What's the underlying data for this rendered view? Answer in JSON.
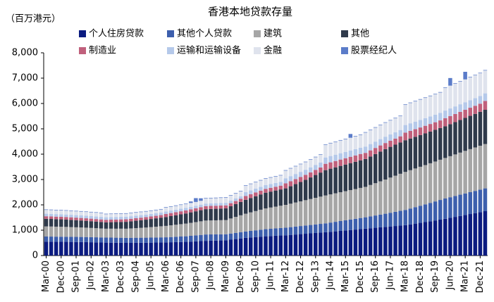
{
  "chart_data": {
    "type": "stacked_bar",
    "title": "香港本地贷款存量",
    "y_label": "（百万港元）",
    "categories": [
      "Mar-00",
      null,
      null,
      "Dec-00",
      null,
      null,
      "Sep-01",
      null,
      null,
      "Jun-02",
      null,
      null,
      "Mar-03",
      null,
      null,
      "Dec-03",
      null,
      null,
      "Sep-04",
      null,
      null,
      "Jun-05",
      null,
      null,
      "Mar-06",
      null,
      null,
      "Dec-06",
      null,
      null,
      "Sep-07",
      null,
      null,
      "Jun-08",
      null,
      null,
      "Mar-09",
      null,
      null,
      "Dec-09",
      null,
      null,
      "Sep-10",
      null,
      null,
      "Jun-11",
      null,
      null,
      "Mar-12",
      null,
      null,
      "Dec-12",
      null,
      null,
      "Sep-13",
      null,
      null,
      "Jun-14",
      null,
      null,
      "Mar-15",
      null,
      null,
      "Dec-15",
      null,
      null,
      "Sep-16",
      null,
      null,
      "Jun-17",
      null,
      null,
      "Mar-18",
      null,
      null,
      "Dec-18",
      null,
      null,
      "Sep-19",
      null,
      null,
      "Jun-20",
      null,
      null,
      "Mar-21",
      null,
      null,
      "Dec-21",
      null
    ],
    "ylim": [
      0,
      8000
    ],
    "yticks": [
      0,
      {
        "value": 1000,
        "label": "1,000"
      },
      {
        "value": 2000,
        "label": "2,000"
      },
      {
        "value": 3000,
        "label": "3,000"
      },
      {
        "value": 4000,
        "label": "4,000"
      },
      {
        "value": 5000,
        "label": "5,000"
      },
      {
        "value": 6000,
        "label": "6,000"
      },
      {
        "value": 7000,
        "label": "7,000"
      },
      {
        "value": 8000,
        "label": "8,000"
      }
    ],
    "series": [
      {
        "name": "个人住房贷款",
        "color": "#0b1b80",
        "values": [
          550,
          548,
          545,
          543,
          540,
          538,
          535,
          533,
          530,
          525,
          520,
          515,
          510,
          508,
          505,
          503,
          500,
          501,
          503,
          504,
          505,
          509,
          513,
          517,
          520,
          525,
          530,
          535,
          540,
          550,
          560,
          570,
          580,
          585,
          590,
          595,
          600,
          625,
          650,
          675,
          700,
          715,
          730,
          745,
          760,
          770,
          780,
          790,
          800,
          815,
          830,
          845,
          860,
          875,
          890,
          905,
          920,
          938,
          955,
          973,
          990,
          1008,
          1025,
          1043,
          1060,
          1078,
          1095,
          1113,
          1130,
          1148,
          1165,
          1183,
          1200,
          1230,
          1260,
          1290,
          1320,
          1353,
          1385,
          1418,
          1450,
          1488,
          1525,
          1563,
          1600,
          1638,
          1675,
          1713,
          1750
        ]
      },
      {
        "name": "其他个人贷款",
        "color": "#3d5fad",
        "values": [
          200,
          200,
          200,
          200,
          200,
          200,
          200,
          200,
          200,
          200,
          200,
          200,
          200,
          200,
          200,
          200,
          200,
          200,
          200,
          200,
          200,
          200,
          200,
          200,
          200,
          205,
          210,
          215,
          220,
          228,
          235,
          243,
          250,
          248,
          245,
          243,
          240,
          243,
          245,
          248,
          250,
          258,
          265,
          273,
          280,
          285,
          290,
          295,
          300,
          306,
          313,
          319,
          325,
          331,
          338,
          344,
          350,
          363,
          375,
          388,
          400,
          413,
          425,
          438,
          450,
          468,
          485,
          503,
          520,
          540,
          560,
          580,
          600,
          625,
          650,
          675,
          700,
          725,
          750,
          775,
          800,
          813,
          825,
          838,
          850,
          863,
          875,
          888,
          900
        ]
      },
      {
        "name": "建筑",
        "color": "#a6a6a6",
        "values": [
          400,
          398,
          395,
          393,
          390,
          385,
          380,
          375,
          370,
          365,
          360,
          355,
          350,
          353,
          355,
          358,
          360,
          370,
          380,
          390,
          400,
          413,
          425,
          438,
          450,
          463,
          475,
          488,
          500,
          513,
          525,
          538,
          550,
          553,
          555,
          558,
          560,
          595,
          630,
          665,
          700,
          730,
          760,
          790,
          820,
          840,
          860,
          880,
          900,
          925,
          950,
          975,
          1000,
          1025,
          1050,
          1075,
          1100,
          1113,
          1125,
          1138,
          1150,
          1163,
          1175,
          1188,
          1200,
          1238,
          1275,
          1313,
          1350,
          1388,
          1425,
          1463,
          1500,
          1513,
          1525,
          1538,
          1550,
          1563,
          1575,
          1588,
          1600,
          1620,
          1640,
          1660,
          1680,
          1698,
          1715,
          1733,
          1750
        ]
      },
      {
        "name": "其他",
        "color": "#2f3a4b",
        "values": [
          300,
          298,
          295,
          293,
          290,
          285,
          280,
          275,
          270,
          265,
          260,
          255,
          250,
          255,
          260,
          265,
          270,
          280,
          290,
          300,
          310,
          320,
          330,
          340,
          350,
          363,
          375,
          388,
          400,
          413,
          425,
          438,
          450,
          453,
          455,
          458,
          460,
          483,
          505,
          528,
          550,
          568,
          585,
          603,
          620,
          628,
          635,
          643,
          650,
          688,
          725,
          763,
          800,
          850,
          900,
          950,
          1000,
          1013,
          1025,
          1038,
          1050,
          1063,
          1075,
          1088,
          1100,
          1125,
          1150,
          1175,
          1200,
          1213,
          1225,
          1238,
          1250,
          1250,
          1250,
          1250,
          1250,
          1250,
          1250,
          1250,
          1250,
          1263,
          1275,
          1288,
          1300,
          1313,
          1325,
          1338,
          1350
        ]
      },
      {
        "name": "制造业",
        "color": "#c0607c",
        "values": [
          100,
          100,
          100,
          100,
          100,
          100,
          100,
          100,
          100,
          100,
          100,
          100,
          100,
          100,
          100,
          100,
          100,
          100,
          100,
          100,
          100,
          100,
          100,
          100,
          120,
          120,
          120,
          120,
          120,
          120,
          120,
          120,
          120,
          120,
          120,
          120,
          120,
          120,
          120,
          120,
          150,
          150,
          150,
          150,
          150,
          150,
          150,
          150,
          200,
          200,
          200,
          200,
          200,
          200,
          200,
          200,
          250,
          250,
          250,
          250,
          250,
          250,
          250,
          250,
          240,
          240,
          240,
          240,
          240,
          240,
          240,
          240,
          300,
          300,
          300,
          300,
          300,
          300,
          300,
          300,
          320,
          320,
          320,
          320,
          320,
          320,
          320,
          320,
          350
        ]
      },
      {
        "name": "运输和运输设备",
        "color": "#b5c9ea",
        "values": [
          100,
          100,
          100,
          100,
          100,
          100,
          100,
          100,
          100,
          100,
          100,
          100,
          100,
          100,
          100,
          100,
          100,
          100,
          100,
          100,
          100,
          100,
          100,
          100,
          100,
          100,
          100,
          100,
          100,
          100,
          100,
          100,
          100,
          100,
          100,
          100,
          100,
          100,
          100,
          100,
          150,
          150,
          150,
          150,
          150,
          150,
          150,
          150,
          200,
          200,
          200,
          200,
          200,
          200,
          200,
          200,
          250,
          250,
          250,
          250,
          250,
          250,
          250,
          250,
          250,
          250,
          250,
          250,
          250,
          250,
          250,
          250,
          300,
          300,
          300,
          300,
          300,
          300,
          300,
          300,
          300,
          300,
          300,
          300,
          300,
          300,
          300,
          300,
          300
        ]
      },
      {
        "name": "金融",
        "color": "#dfe3ed",
        "values": [
          150,
          150,
          150,
          150,
          150,
          150,
          150,
          150,
          150,
          150,
          150,
          150,
          120,
          120,
          120,
          120,
          120,
          120,
          120,
          120,
          120,
          120,
          120,
          120,
          150,
          150,
          150,
          150,
          150,
          150,
          150,
          150,
          200,
          200,
          200,
          200,
          200,
          200,
          200,
          200,
          250,
          250,
          250,
          250,
          250,
          250,
          250,
          250,
          300,
          300,
          300,
          300,
          300,
          300,
          300,
          300,
          500,
          500,
          500,
          500,
          500,
          500,
          500,
          500,
          550,
          550,
          550,
          550,
          550,
          550,
          550,
          550,
          800,
          800,
          800,
          800,
          800,
          800,
          800,
          800,
          900,
          900,
          900,
          900,
          900,
          900,
          900,
          900,
          900
        ]
      },
      {
        "name": "股票经纪人",
        "color": "#5b7cc9",
        "values": [
          20,
          20,
          20,
          20,
          20,
          20,
          20,
          20,
          20,
          20,
          20,
          20,
          20,
          20,
          20,
          20,
          20,
          20,
          20,
          20,
          20,
          20,
          20,
          20,
          20,
          20,
          20,
          20,
          20,
          60,
          150,
          100,
          20,
          20,
          20,
          20,
          20,
          20,
          20,
          20,
          20,
          20,
          20,
          20,
          20,
          20,
          20,
          20,
          20,
          20,
          20,
          20,
          20,
          20,
          20,
          20,
          20,
          20,
          20,
          20,
          20,
          150,
          20,
          20,
          20,
          20,
          20,
          20,
          20,
          20,
          20,
          20,
          20,
          20,
          20,
          20,
          20,
          20,
          20,
          20,
          20,
          300,
          20,
          20,
          300,
          20,
          20,
          20,
          20
        ]
      }
    ]
  }
}
